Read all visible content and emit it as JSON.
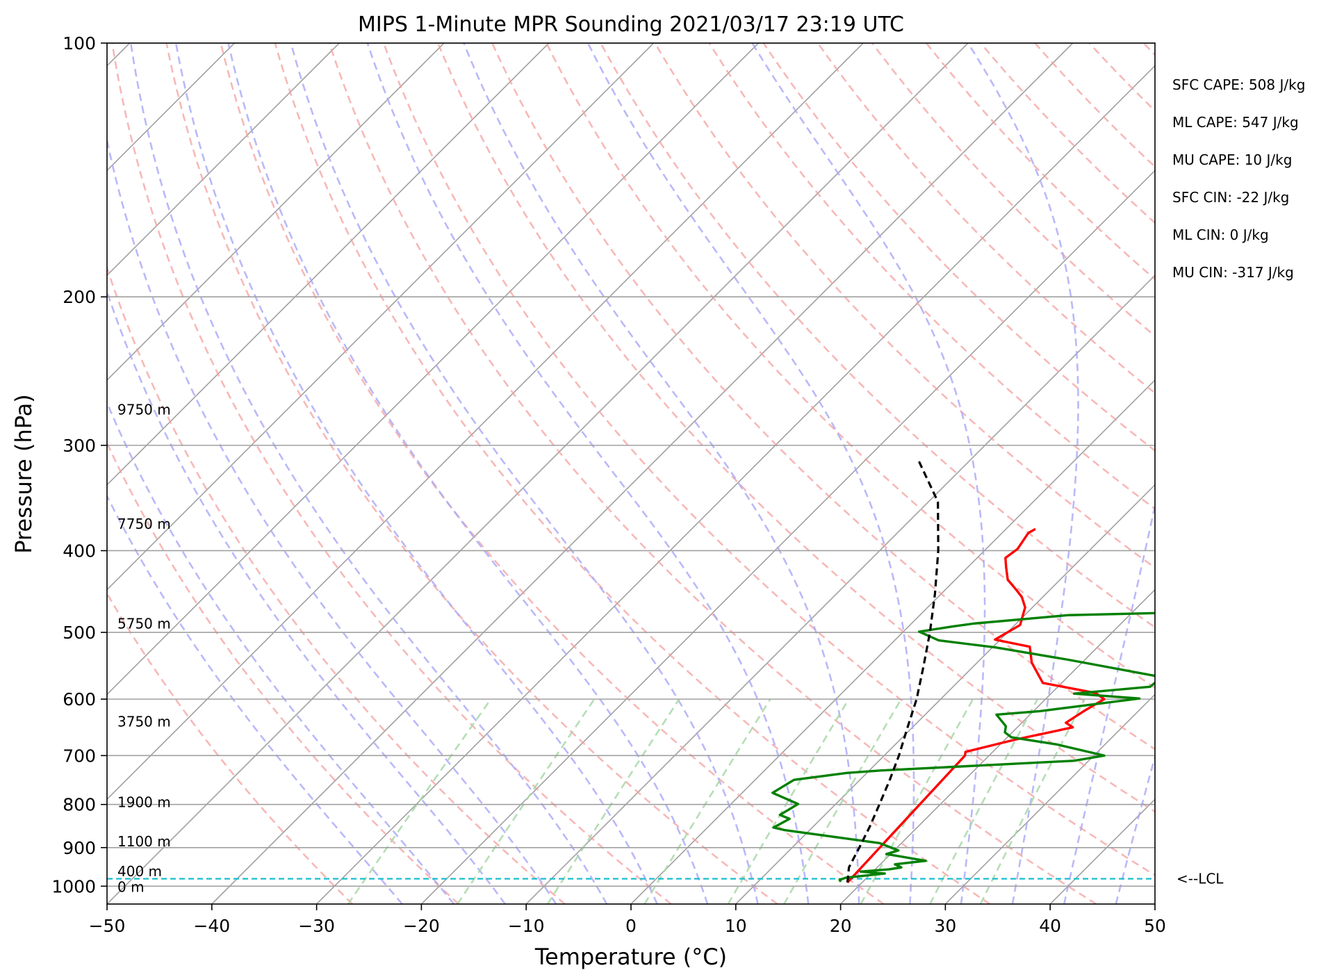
{
  "chart_data": {
    "type": "line",
    "diagram": "skew-t log-p",
    "title": "MIPS 1-Minute MPR Sounding 2021/03/17 23:19 UTC",
    "xlabel": "Temperature (°C)",
    "ylabel": "Pressure (hPa)",
    "xlim": [
      -50,
      50
    ],
    "ylim": [
      1050,
      100
    ],
    "y_scale": "log",
    "x_ticks": [
      "−50",
      "−40",
      "−30",
      "−20",
      "−10",
      "0",
      "10",
      "20",
      "30",
      "40",
      "50"
    ],
    "y_ticks": [
      "100",
      "200",
      "300",
      "400",
      "500",
      "600",
      "700",
      "800",
      "900",
      "1000"
    ],
    "y_tick_values": [
      100,
      200,
      300,
      400,
      500,
      600,
      700,
      800,
      900,
      1000
    ],
    "grid": true,
    "height_labels": [
      {
        "label": "9750 m",
        "p": 272
      },
      {
        "label": "7750 m",
        "p": 372
      },
      {
        "label": "5750 m",
        "p": 488
      },
      {
        "label": "3750 m",
        "p": 638
      },
      {
        "label": "1900 m",
        "p": 795
      },
      {
        "label": "1100 m",
        "p": 885
      },
      {
        "label": "400 m",
        "p": 960
      },
      {
        "label": "0 m",
        "p": 1002
      }
    ],
    "lcl": {
      "label": "<--LCL",
      "p": 980
    },
    "annotations": [
      "SFC CAPE: 508 J/kg",
      "ML CAPE: 547 J/kg",
      "MU CAPE: 10 J/kg",
      "SFC CIN: -22 J/kg",
      "ML CIN: 0 J/kg",
      "MU CIN: -317 J/kg"
    ],
    "series": [
      {
        "role": "temperature",
        "color": "#ff0000",
        "points": [
          [
            18.6,
            990
          ],
          [
            17.7,
            700
          ],
          [
            17.4,
            693
          ],
          [
            21.0,
            670
          ],
          [
            25.3,
            648
          ],
          [
            24.2,
            640
          ],
          [
            24.8,
            620
          ],
          [
            25.6,
            600
          ],
          [
            24.2,
            590
          ],
          [
            18.2,
            574
          ],
          [
            15.2,
            543
          ],
          [
            13.5,
            520
          ],
          [
            9.5,
            510
          ],
          [
            10.5,
            490
          ],
          [
            9.3,
            467
          ],
          [
            8.0,
            454
          ],
          [
            6.9,
            446
          ],
          [
            5.0,
            433
          ],
          [
            3.7,
            419
          ],
          [
            2.7,
            408
          ],
          [
            3.0,
            398
          ],
          [
            2.5,
            381
          ],
          [
            2.8,
            377
          ]
        ]
      },
      {
        "role": "dewpoint",
        "color": "#008000",
        "points": [
          [
            17.9,
            988
          ],
          [
            17.6,
            983
          ],
          [
            18.0,
            977
          ],
          [
            21.3,
            966
          ],
          [
            18.8,
            961
          ],
          [
            21.3,
            955
          ],
          [
            22.3,
            950
          ],
          [
            21.4,
            942
          ],
          [
            24.0,
            933
          ],
          [
            19.6,
            916
          ],
          [
            20.4,
            907
          ],
          [
            17.9,
            889
          ],
          [
            7.6,
            858
          ],
          [
            6.3,
            852
          ],
          [
            7.0,
            832
          ],
          [
            5.7,
            823
          ],
          [
            6.4,
            799
          ],
          [
            2.9,
            775
          ],
          [
            3.7,
            748
          ],
          [
            8.1,
            734
          ],
          [
            11.2,
            729
          ],
          [
            28.6,
            710
          ],
          [
            31.0,
            700
          ],
          [
            25.4,
            679
          ],
          [
            20.4,
            666
          ],
          [
            19.3,
            657
          ],
          [
            18.8,
            646
          ],
          [
            16.8,
            626
          ],
          [
            20.6,
            620
          ],
          [
            28.9,
            599
          ],
          [
            22.2,
            591
          ],
          [
            28.8,
            580
          ],
          [
            29.0,
            565
          ],
          [
            18.5,
            539
          ],
          [
            10.3,
            521
          ],
          [
            4.2,
            511
          ],
          [
            1.5,
            499
          ],
          [
            4.2,
            492
          ],
          [
            6.0,
            488
          ],
          [
            14.2,
            477
          ],
          [
            26.4,
            473
          ],
          [
            30.6,
            458
          ],
          [
            34.1,
            452
          ],
          [
            36.7,
            437
          ],
          [
            39.0,
            432
          ],
          [
            36.3,
            427
          ],
          [
            34.9,
            419
          ],
          [
            20.5,
            401
          ],
          [
            30.5,
            393
          ],
          [
            40.9,
            384
          ],
          [
            42.4,
            377
          ],
          [
            46.6,
            375
          ],
          [
            42.5,
            370
          ],
          [
            32.8,
            354
          ],
          [
            31.9,
            347
          ],
          [
            32.6,
            341
          ],
          [
            38.7,
            333
          ],
          [
            30.5,
            326
          ],
          [
            33.1,
            321
          ],
          [
            33.2,
            317
          ]
        ]
      },
      {
        "role": "parcel",
        "color": "#000000",
        "points": [
          [
            18.6,
            990
          ],
          [
            17.3,
            950
          ],
          [
            16.4,
            900
          ],
          [
            15.4,
            850
          ],
          [
            14.2,
            800
          ],
          [
            12.9,
            750
          ],
          [
            11.4,
            700
          ],
          [
            9.6,
            650
          ],
          [
            7.7,
            600
          ],
          [
            5.3,
            550
          ],
          [
            2.6,
            500
          ],
          [
            -0.6,
            450
          ],
          [
            -4.4,
            400
          ],
          [
            -9.1,
            350
          ],
          [
            -15.0,
            312
          ]
        ]
      }
    ],
    "background_lines": {
      "isotherms_c": [
        -160,
        -150,
        -140,
        -130,
        -120,
        -110,
        -100,
        -90,
        -80,
        -70,
        -60,
        -50,
        -40,
        -30,
        -20,
        -10,
        0,
        10,
        20,
        30,
        40,
        50
      ],
      "dry_adiabats_c_at_1000hpa": [
        -30,
        -20,
        -10,
        0,
        10,
        20,
        30,
        40,
        50,
        60,
        70,
        80,
        90,
        100,
        110,
        120,
        130,
        140,
        150,
        160,
        170,
        180,
        190,
        200
      ],
      "moist_adiabats_c_at_1000hpa": [
        -25,
        -20,
        -15,
        -10,
        -5,
        0,
        5,
        10,
        15,
        20,
        25,
        30,
        35,
        40,
        45
      ],
      "mixing_ratios_g_per_kg": [
        0.4,
        1,
        2,
        4,
        7,
        10,
        16,
        24,
        32
      ]
    }
  }
}
